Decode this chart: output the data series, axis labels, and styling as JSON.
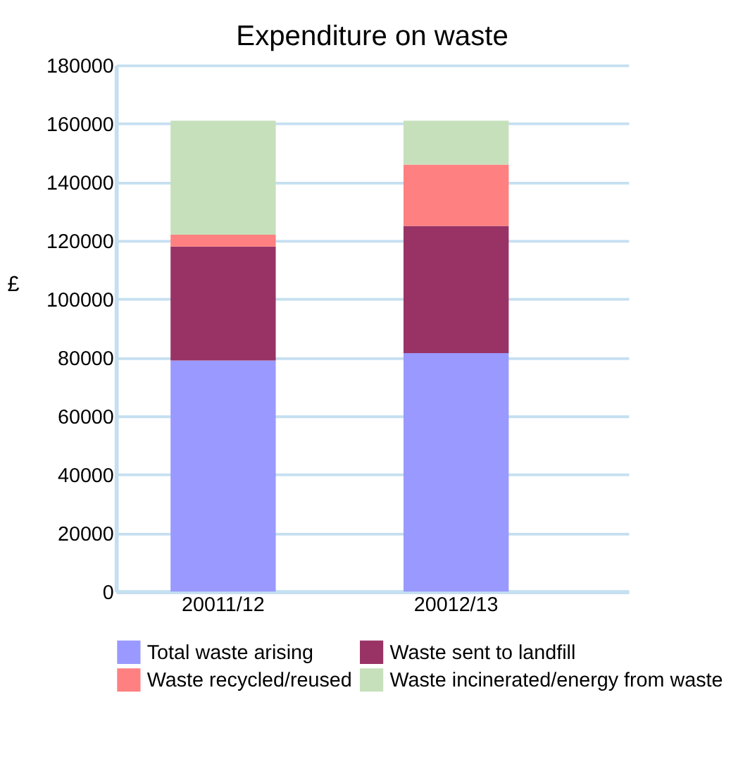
{
  "chart_data": {
    "type": "bar",
    "title": "Expenditure on waste",
    "ylabel": "£",
    "categories": [
      "20011/12",
      "20012/13"
    ],
    "series": [
      {
        "name": "Total waste arising",
        "color": "#9999ff",
        "values": [
          79000,
          81500
        ]
      },
      {
        "name": "Waste sent to landfill",
        "color": "#993366",
        "values": [
          39000,
          43500
        ]
      },
      {
        "name": "Waste recycled/reused",
        "color": "#ff8080",
        "values": [
          4000,
          21000
        ]
      },
      {
        "name": "Waste incinerated/energy from waste",
        "color": "#c6e0bc",
        "values": [
          39000,
          15000
        ]
      }
    ],
    "stacked": true,
    "ylim": [
      0,
      180000
    ],
    "yticks": [
      0,
      20000,
      40000,
      60000,
      80000,
      100000,
      120000,
      140000,
      160000,
      180000
    ],
    "grid": "y",
    "legend": "bottom"
  }
}
